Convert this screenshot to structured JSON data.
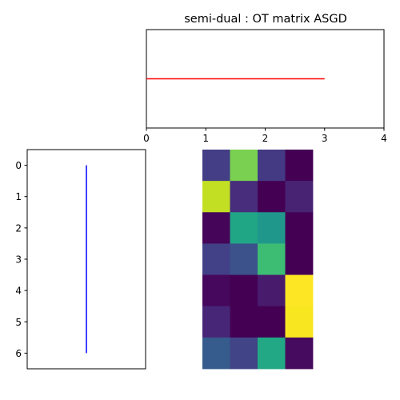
{
  "chart_data": [
    {
      "type": "line",
      "title": "semi-dual : OT matrix ASGD",
      "xlim": [
        0,
        4
      ],
      "xticks": [
        0,
        1,
        2,
        3,
        4
      ],
      "ylim": [
        0,
        1
      ],
      "series": [
        {
          "color": "#ff0000",
          "x": [
            0,
            3
          ],
          "y": [
            0.5,
            0.5
          ]
        }
      ],
      "grid": false
    },
    {
      "type": "line",
      "orientation": "vertical",
      "yticks": [
        0,
        1,
        2,
        3,
        4,
        5,
        6
      ],
      "ylim": [
        6.5,
        -0.5
      ],
      "series": [
        {
          "color": "#0000ff",
          "x": [
            0,
            0
          ],
          "y": [
            0,
            6
          ]
        }
      ],
      "grid": false
    },
    {
      "type": "heatmap",
      "colormap": "viridis",
      "rows": 7,
      "cols": 4,
      "colors": [
        [
          "#433e85",
          "#7ad151",
          "#443983",
          "#440154"
        ],
        [
          "#c2df23",
          "#472d7b",
          "#440154",
          "#482374"
        ],
        [
          "#450559",
          "#21a685",
          "#1f988b",
          "#440154"
        ],
        [
          "#424086",
          "#3b528b",
          "#3dbc74",
          "#440154"
        ],
        [
          "#46085c",
          "#440154",
          "#481b6d",
          "#fde725"
        ],
        [
          "#482677",
          "#440154",
          "#440154",
          "#f8e621"
        ],
        [
          "#365c8d",
          "#414487",
          "#22a884",
          "#460b5e"
        ]
      ]
    }
  ]
}
